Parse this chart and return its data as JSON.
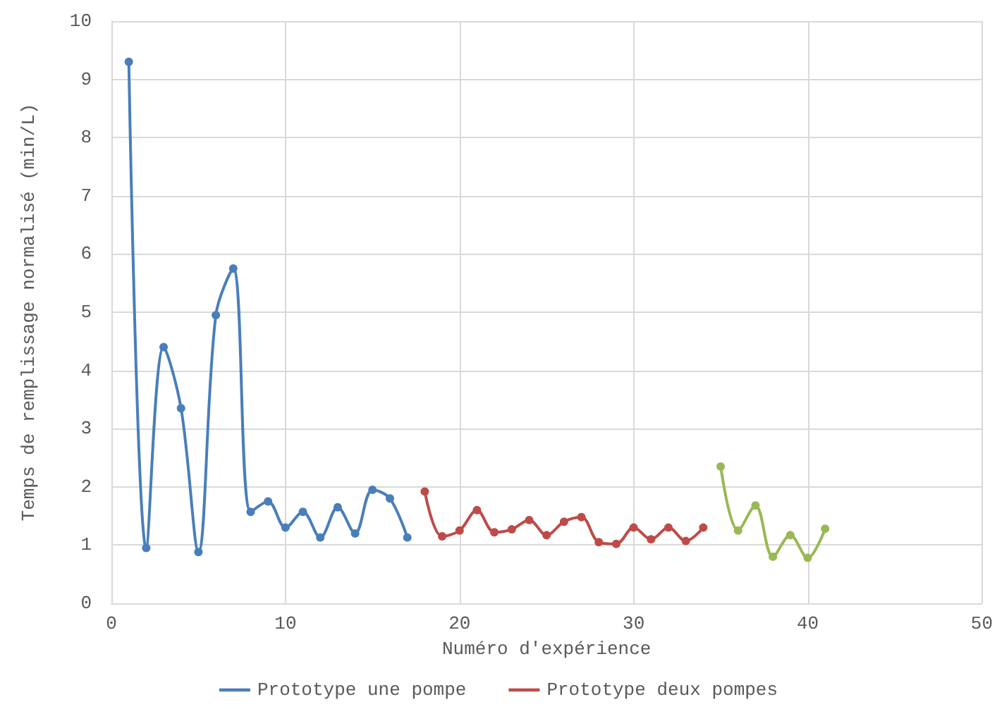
{
  "chart_data": {
    "type": "line",
    "xlabel": "Numéro d'expérience",
    "ylabel": "Temps de remplissage normalisé (min/L)",
    "xlim": [
      0,
      50
    ],
    "xticks": [
      0,
      10,
      20,
      30,
      40,
      50
    ],
    "ylim": [
      0,
      10
    ],
    "yticks": [
      0,
      1,
      2,
      3,
      4,
      5,
      6,
      7,
      8,
      9,
      10
    ],
    "grid": true,
    "legend": "bottom",
    "marker": "circle",
    "line_style": "solid",
    "series": [
      {
        "name": "Prototype une pompe",
        "color": "#4a7ebb",
        "x": [
          1,
          2,
          3,
          4,
          5,
          6,
          7,
          8,
          9,
          10,
          11,
          12,
          13,
          14,
          15,
          16,
          17
        ],
        "values": [
          9.3,
          0.95,
          4.4,
          3.35,
          0.88,
          4.95,
          5.75,
          1.57,
          1.75,
          1.3,
          1.57,
          1.13,
          1.65,
          1.2,
          1.95,
          1.8,
          1.13
        ]
      },
      {
        "name": "Prototype deux pompes",
        "color": "#be4b48",
        "x": [
          18,
          19,
          20,
          21,
          22,
          23,
          24,
          25,
          26,
          27,
          28,
          29,
          30,
          31,
          32,
          33,
          34
        ],
        "values": [
          1.92,
          1.15,
          1.25,
          1.6,
          1.22,
          1.27,
          1.43,
          1.17,
          1.4,
          1.48,
          1.05,
          1.02,
          1.3,
          1.1,
          1.3,
          1.07,
          1.3
        ]
      },
      {
        "color": "#98b954",
        "x": [
          35,
          36,
          37,
          38,
          39,
          40,
          41
        ],
        "values": [
          2.35,
          1.25,
          1.68,
          0.8,
          1.17,
          0.78,
          1.28
        ]
      }
    ]
  }
}
